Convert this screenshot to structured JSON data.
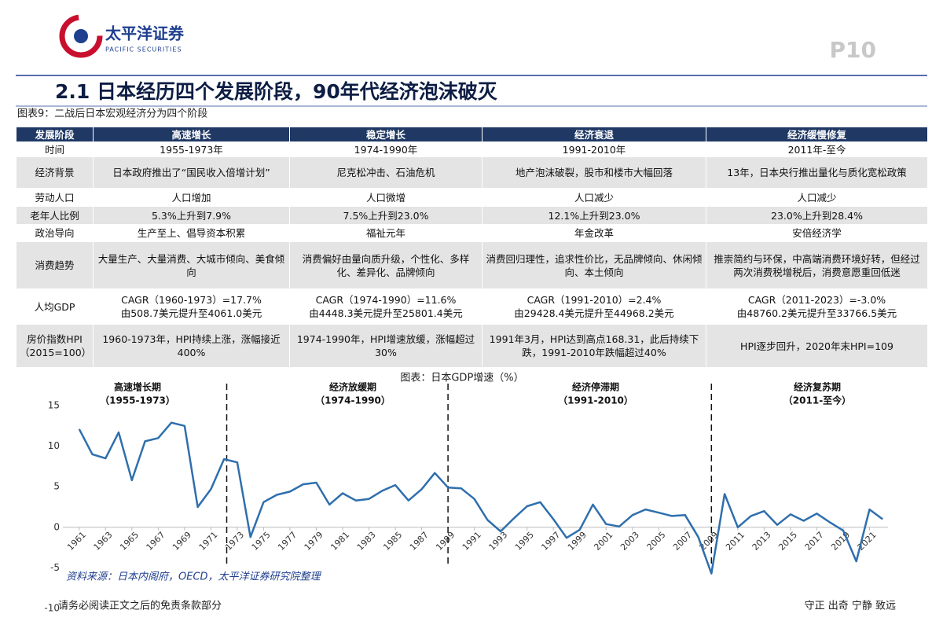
{
  "header": {
    "logo_cn": "太平洋证券",
    "logo_en": "PACIFIC SECURITIES",
    "page": "P10",
    "title": "2.1 日本经历四个发展阶段，90年代经济泡沫破灭"
  },
  "table": {
    "caption": "图表9：二战后日本宏观经济分为四个阶段",
    "header": [
      "发展阶段",
      "高速增长",
      "稳定增长",
      "经济衰退",
      "经济缓慢修复"
    ],
    "rows": [
      [
        "时间",
        "1955-1973年",
        "1974-1990年",
        "1991-2010年",
        "2011年-至今"
      ],
      [
        "经济背景",
        "日本政府推出了“国民收入倍增计划”",
        "尼克松冲击、石油危机",
        "地产泡沫破裂，股市和楼市大幅回落",
        "13年，日本央行推出量化与质化宽松政策"
      ],
      [
        "劳动人口",
        "人口增加",
        "人口微增",
        "人口减少",
        "人口减少"
      ],
      [
        "老年人比例",
        "5.3%上升到7.9%",
        "7.5%上升到23.0%",
        "12.1%上升到23.0%",
        "23.0%上升到28.4%"
      ],
      [
        "政治导向",
        "生产至上、倡导资本积累",
        "福祉元年",
        "年金改革",
        "安倍经济学"
      ],
      [
        "消费趋势",
        "大量生产、大量消费、大城市倾向、美食倾向",
        "消费偏好由量向质升级，个性化、多样化、差异化、品牌倾向",
        "消费回归理性，追求性价比，无品牌倾向、休闲倾向、本土倾向",
        "推崇简约与环保，中高端消费环境好转，但经过两次消费税增税后，消费意愿重回低迷"
      ],
      [
        "人均GDP",
        "CAGR（1960-1973）=17.7%\n由508.7美元提升至4061.0美元",
        "CAGR（1974-1990）=11.6%\n由4448.3美元提升至25801.4美元",
        "CAGR（1991-2010）=2.4%\n由29428.4美元提升至44968.2美元",
        "CAGR（2011-2023）=-3.0%\n由48760.2美元提升至33766.5美元"
      ],
      [
        "房价指数HPI\n（2015=100）",
        "1960-1973年，HPI持续上涨，涨幅接近400%",
        "1974-1990年，HPI增速放缓，涨幅超过30%",
        "1991年3月，HPI达到高点168.31，此后持续下跌，1991-2010年跌幅超过40%",
        "HPI逐步回升，2020年末HPI=109"
      ]
    ]
  },
  "chart_data": {
    "type": "line",
    "title": "图表：日本GDP增速（%）",
    "color": "#2f6fad",
    "x": [
      1961,
      1962,
      1963,
      1964,
      1965,
      1966,
      1967,
      1968,
      1969,
      1970,
      1971,
      1972,
      1973,
      1974,
      1975,
      1976,
      1977,
      1978,
      1979,
      1980,
      1981,
      1982,
      1983,
      1984,
      1985,
      1986,
      1987,
      1988,
      1989,
      1990,
      1991,
      1992,
      1993,
      1994,
      1995,
      1996,
      1997,
      1998,
      1999,
      2000,
      2001,
      2002,
      2003,
      2004,
      2005,
      2006,
      2007,
      2008,
      2009,
      2010,
      2011,
      2012,
      2013,
      2014,
      2015,
      2016,
      2017,
      2018,
      2019,
      2020,
      2021,
      2022
    ],
    "values": [
      12.1,
      9.0,
      8.5,
      11.7,
      5.8,
      10.6,
      11.0,
      12.9,
      12.5,
      2.5,
      4.7,
      8.4,
      8.0,
      -1.2,
      3.1,
      4.0,
      4.4,
      5.3,
      5.5,
      2.8,
      4.2,
      3.3,
      3.5,
      4.5,
      5.2,
      3.3,
      4.7,
      6.7,
      4.9,
      4.8,
      3.5,
      0.9,
      -0.5,
      1.1,
      2.6,
      3.1,
      1.0,
      -1.3,
      -0.3,
      2.8,
      0.4,
      0.1,
      1.5,
      2.2,
      1.8,
      1.4,
      1.5,
      -1.2,
      -5.7,
      4.1,
      0.0,
      1.4,
      2.0,
      0.3,
      1.6,
      0.8,
      1.7,
      0.6,
      -0.4,
      -4.2,
      2.2,
      1.0
    ],
    "xlim": [
      1960,
      2023
    ],
    "xticks": [
      1961,
      1963,
      1965,
      1967,
      1969,
      1971,
      1973,
      1975,
      1977,
      1979,
      1981,
      1983,
      1985,
      1987,
      1989,
      1991,
      1993,
      1995,
      1997,
      1999,
      2001,
      2003,
      2005,
      2007,
      2009,
      2011,
      2013,
      2015,
      2017,
      2019,
      2021
    ],
    "ylim": [
      -10,
      15
    ],
    "yticks": [
      -10,
      -5,
      0,
      5,
      10,
      15
    ],
    "grid": false,
    "dividers": [
      1972.2,
      1989,
      2009
    ],
    "phases": [
      {
        "name": "高速增长期",
        "period": "（1955-1973）"
      },
      {
        "name": "经济放缓期",
        "period": "（1974-1990）"
      },
      {
        "name": "经济停滞期",
        "period": "（1991-2010）"
      },
      {
        "name": "经济复苏期",
        "period": "（2011-至今）"
      }
    ],
    "source": "资料来源：日本内阁府，OECD，太平洋证券研究院整理"
  },
  "footer": {
    "disclaimer": "请务必阅读正文之后的免责条款部分",
    "motto": "守正 出奇 宁静 致远"
  }
}
